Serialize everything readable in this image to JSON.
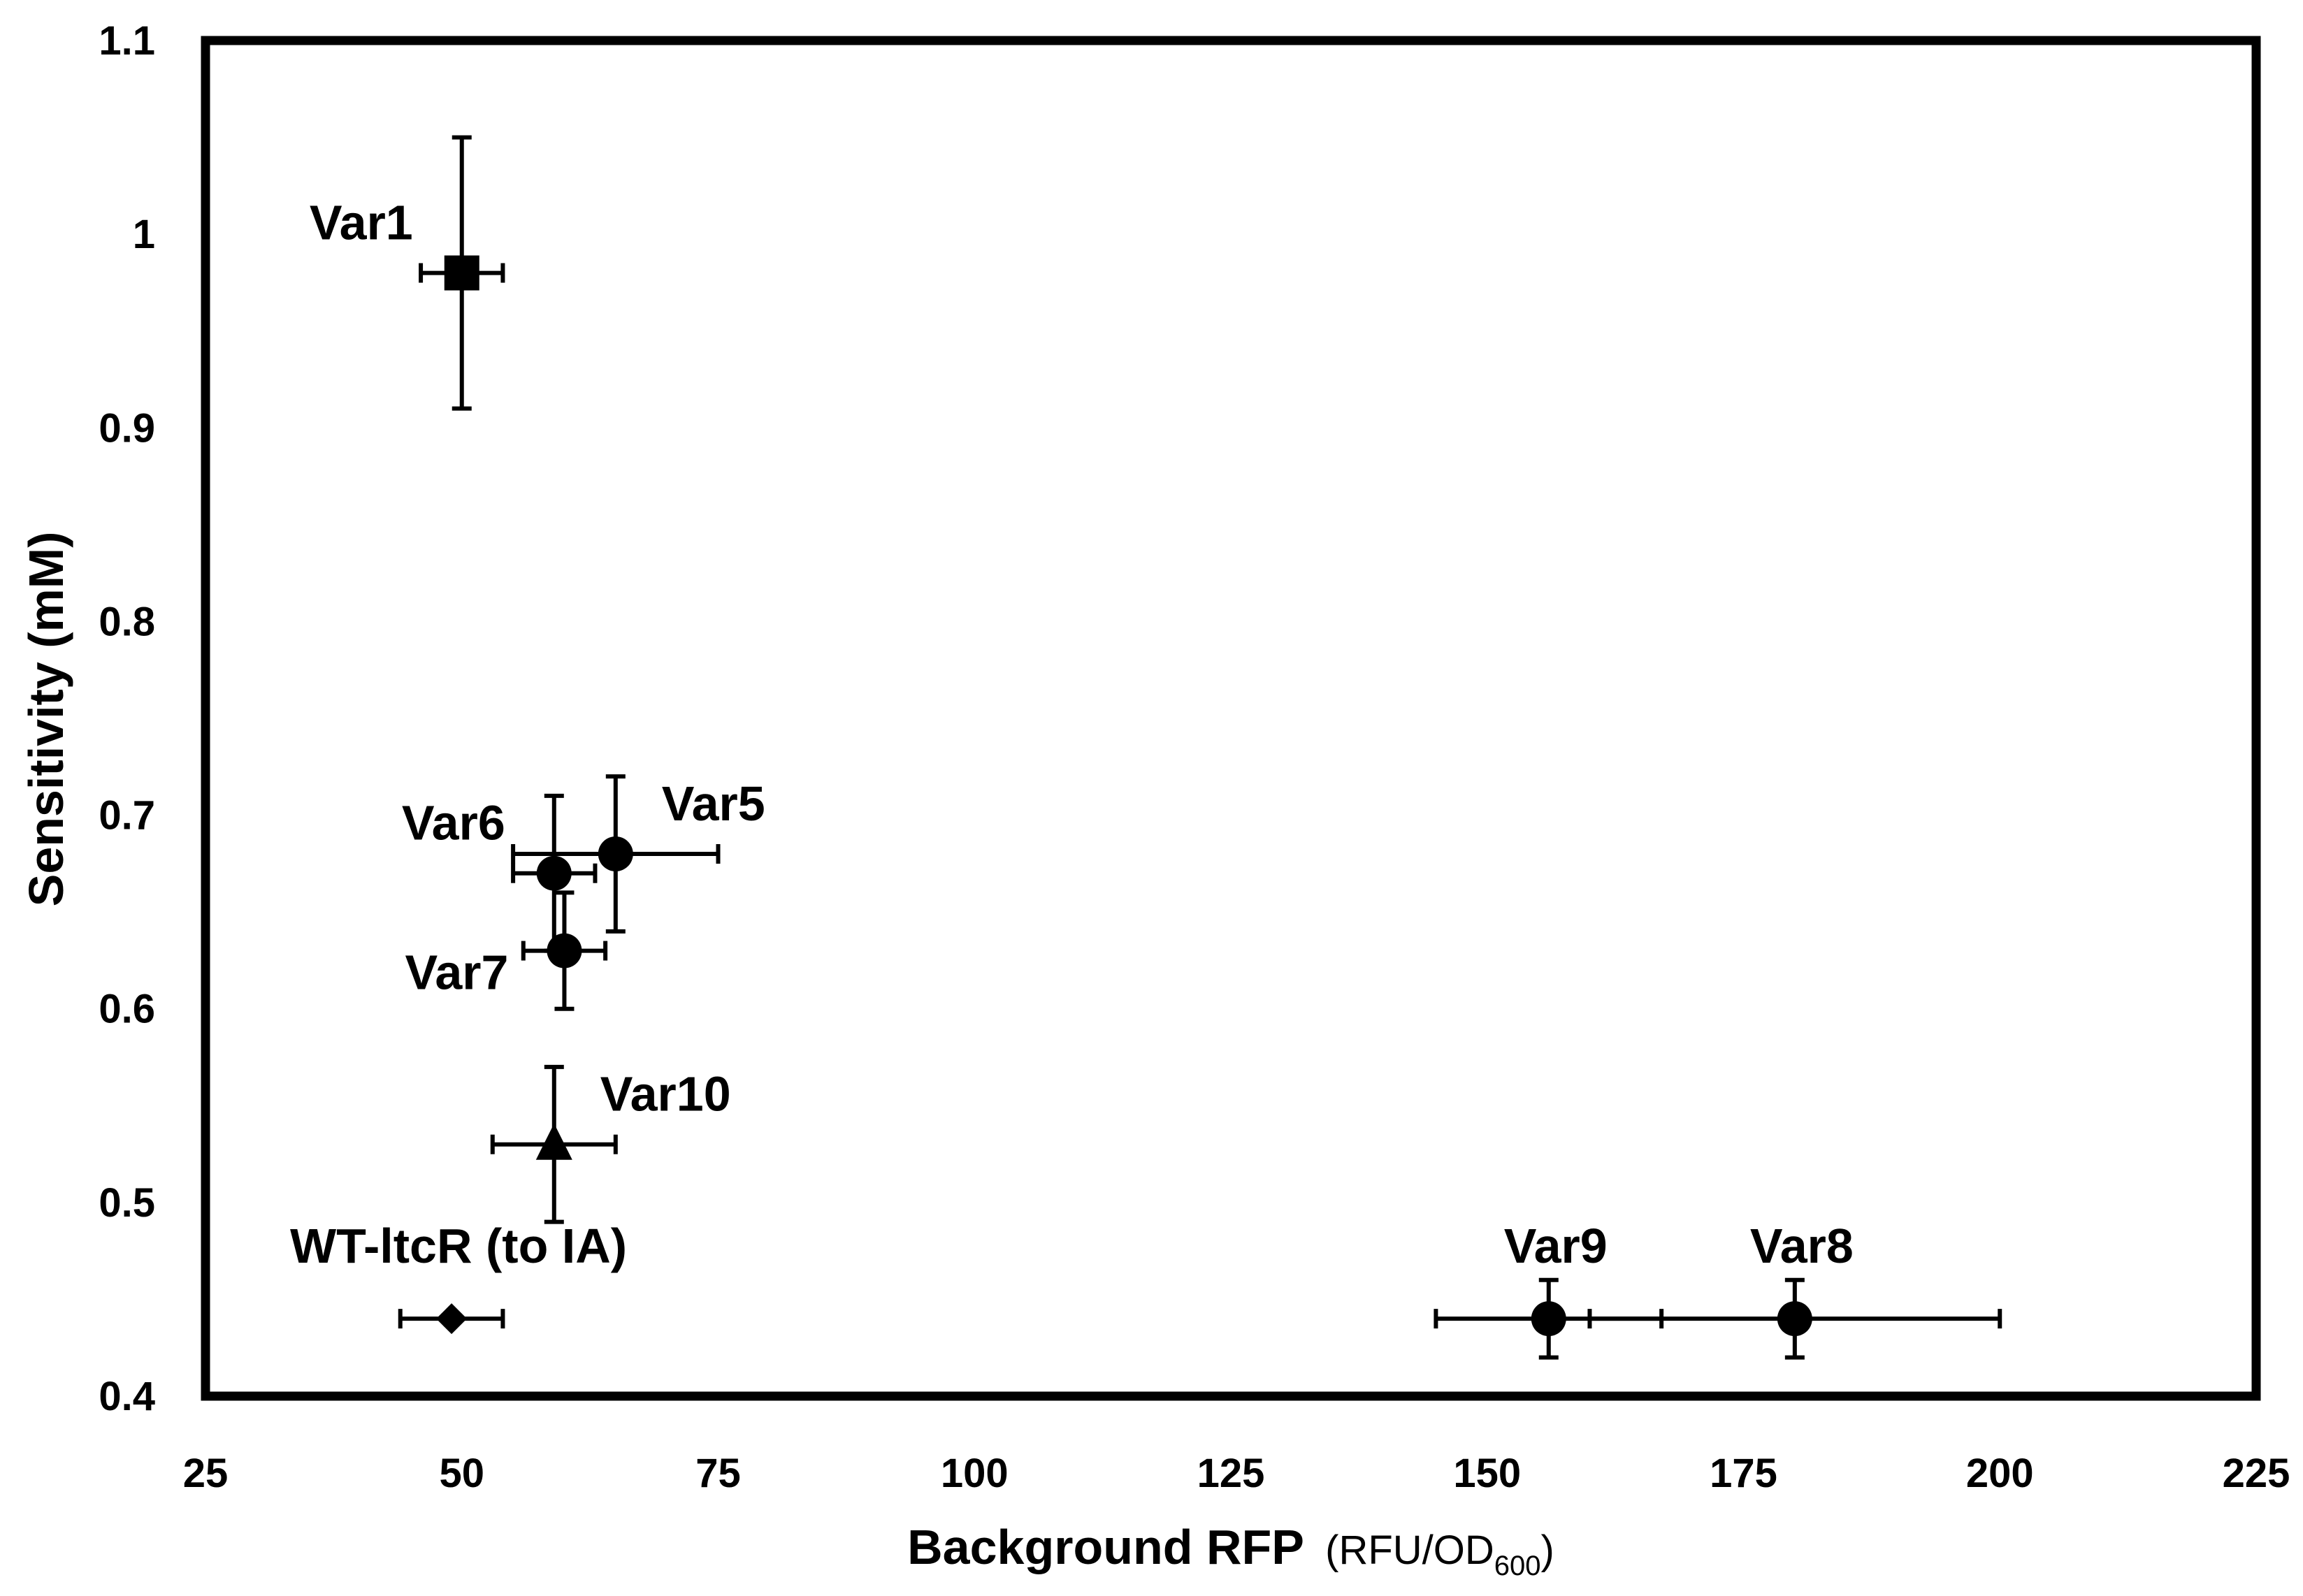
{
  "chart_data": {
    "type": "scatter",
    "title": "",
    "xlabel": "Background RFP",
    "xlabel_unit_prefix": "(RFU/OD",
    "xlabel_unit_sub": "600",
    "xlabel_unit_suffix": ")",
    "ylabel": "Sensitivity (mM)",
    "xlim": [
      25,
      225
    ],
    "ylim": [
      0.4,
      1.1
    ],
    "grid": false,
    "legend": "none",
    "x_ticks": [
      25,
      50,
      75,
      100,
      125,
      150,
      175,
      200,
      225
    ],
    "x_tick_labels": [
      "25",
      "50",
      "75",
      "100",
      "125",
      "150",
      "175",
      "200",
      "225"
    ],
    "y_ticks": [
      0.4,
      0.5,
      0.6,
      0.7,
      0.8,
      0.9,
      1.0,
      1.1
    ],
    "y_tick_labels": [
      "0.4",
      "0.5",
      "0.6",
      "0.7",
      "0.8",
      "0.9",
      "1",
      "1.1"
    ],
    "points": [
      {
        "label": "Var1",
        "x": 50,
        "y": 0.98,
        "x_err": 4,
        "y_err": 0.07,
        "marker": "square",
        "label_anchor": "left-above"
      },
      {
        "label": "Var5",
        "x": 65,
        "y": 0.68,
        "x_err": 10,
        "y_err": 0.04,
        "marker": "circle",
        "label_anchor": "right-above"
      },
      {
        "label": "Var6",
        "x": 59,
        "y": 0.67,
        "x_err": 4,
        "y_err": 0.04,
        "marker": "circle",
        "label_anchor": "left-above"
      },
      {
        "label": "Var7",
        "x": 60,
        "y": 0.63,
        "x_err": 4,
        "y_err": 0.03,
        "marker": "circle",
        "label_anchor": "left-below"
      },
      {
        "label": "Var10",
        "x": 59,
        "y": 0.53,
        "x_err": 6,
        "y_err": 0.04,
        "marker": "triangle",
        "label_anchor": "right-above"
      },
      {
        "label": "WT-ltcR (to IA)",
        "x": 49,
        "y": 0.44,
        "x_err": 5,
        "y_err": 0,
        "marker": "diamond",
        "label_anchor": "above"
      },
      {
        "label": "Var9",
        "x": 156,
        "y": 0.44,
        "x_err": 11,
        "y_err": 0.02,
        "marker": "circle",
        "label_anchor": "above"
      },
      {
        "label": "Var8",
        "x": 180,
        "y": 0.44,
        "x_err": 20,
        "y_err": 0.02,
        "marker": "circle",
        "label_anchor": "above"
      }
    ]
  }
}
